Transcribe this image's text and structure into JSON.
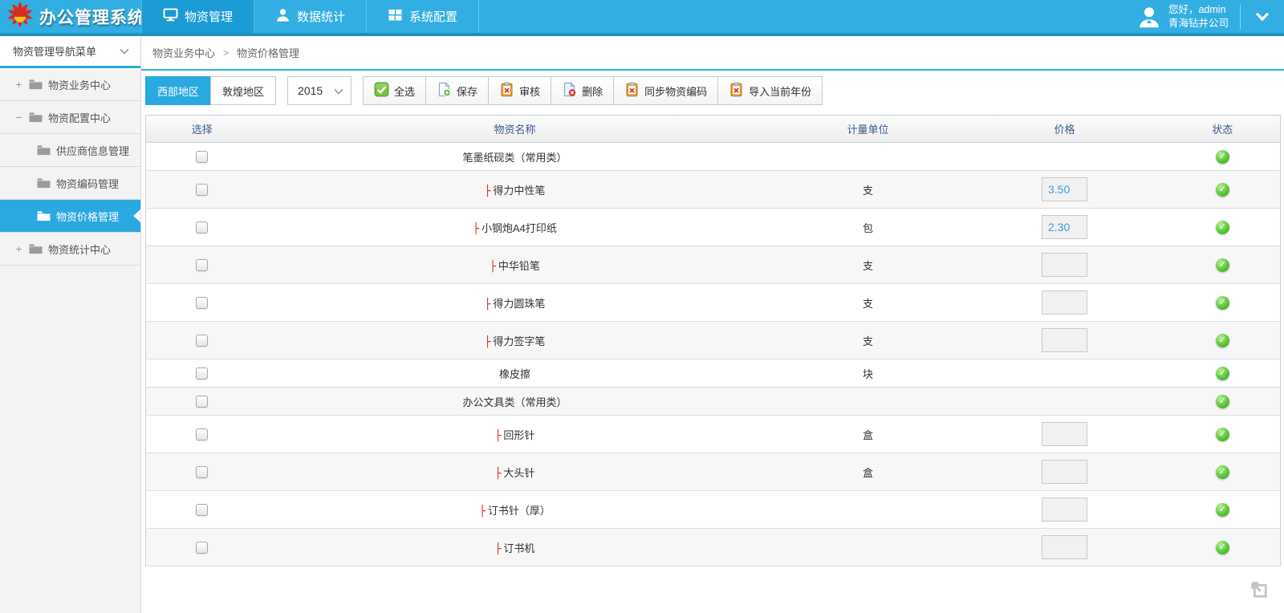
{
  "app": {
    "title": "办公管理系统"
  },
  "topnav": {
    "items": [
      {
        "label": "物资管理",
        "icon": "monitor-icon",
        "active": true
      },
      {
        "label": "数据统计",
        "icon": "user-icon",
        "active": false
      },
      {
        "label": "系统配置",
        "icon": "grid-icon",
        "active": false
      }
    ]
  },
  "user": {
    "greeting": "您好，admin",
    "company": "青海钻井公司"
  },
  "sidebar": {
    "title": "物资管理导航菜单",
    "items": [
      {
        "label": "物资业务中心",
        "level": 0,
        "expander": "+",
        "active": false
      },
      {
        "label": "物资配置中心",
        "level": 0,
        "expander": "−",
        "active": false
      },
      {
        "label": "供应商信息管理",
        "level": 1,
        "expander": "",
        "active": false
      },
      {
        "label": "物资编码管理",
        "level": 1,
        "expander": "",
        "active": false
      },
      {
        "label": "物资价格管理",
        "level": 1,
        "expander": "",
        "active": true
      },
      {
        "label": "物资统计中心",
        "level": 0,
        "expander": "+",
        "active": false
      }
    ]
  },
  "breadcrumb": {
    "parts": [
      "物资业务中心",
      "物资价格管理"
    ],
    "separator": ">"
  },
  "toolbar": {
    "region_tabs": [
      {
        "label": "西部地区",
        "active": true
      },
      {
        "label": "敦煌地区",
        "active": false
      }
    ],
    "year": "2015",
    "buttons": [
      {
        "label": "全选",
        "icon": "checkbox-checked-icon"
      },
      {
        "label": "保存",
        "icon": "save-doc-icon"
      },
      {
        "label": "审核",
        "icon": "clipboard-audit-icon"
      },
      {
        "label": "删除",
        "icon": "delete-doc-icon"
      },
      {
        "label": "同步物资编码",
        "icon": "clipboard-audit-icon"
      },
      {
        "label": "导入当前年份",
        "icon": "clipboard-audit-icon"
      }
    ]
  },
  "table": {
    "headers": [
      "选择",
      "物资名称",
      "计量单位",
      "价格",
      "状态"
    ],
    "rows": [
      {
        "name": "笔墨纸砚类（常用类）",
        "category": true,
        "branch": false,
        "unit": "",
        "input": false,
        "price": "",
        "status": "approved"
      },
      {
        "name": "得力中性笔",
        "category": false,
        "branch": true,
        "unit": "支",
        "input": true,
        "price": "3.50",
        "status": "approved"
      },
      {
        "name": "小钢炮A4打印纸",
        "category": false,
        "branch": true,
        "unit": "包",
        "input": true,
        "price": "2.30",
        "status": "approved"
      },
      {
        "name": "中华铅笔",
        "category": false,
        "branch": true,
        "unit": "支",
        "input": true,
        "price": "",
        "status": "approved"
      },
      {
        "name": "得力圆珠笔",
        "category": false,
        "branch": true,
        "unit": "支",
        "input": true,
        "price": "",
        "status": "approved"
      },
      {
        "name": "得力签字笔",
        "category": false,
        "branch": true,
        "unit": "支",
        "input": true,
        "price": "",
        "status": "approved"
      },
      {
        "name": "橡皮擦",
        "category": false,
        "branch": false,
        "unit": "块",
        "input": false,
        "price": "",
        "status": "approved"
      },
      {
        "name": "办公文具类（常用类）",
        "category": true,
        "branch": false,
        "unit": "",
        "input": false,
        "price": "",
        "status": "approved"
      },
      {
        "name": "回形针",
        "category": false,
        "branch": true,
        "unit": "盒",
        "input": true,
        "price": "",
        "status": "approved"
      },
      {
        "name": "大头针",
        "category": false,
        "branch": true,
        "unit": "盒",
        "input": true,
        "price": "",
        "status": "approved"
      },
      {
        "name": "订书针（厚）",
        "category": false,
        "branch": true,
        "unit": "",
        "input": true,
        "price": "",
        "status": "approved"
      },
      {
        "name": "订书机",
        "category": false,
        "branch": true,
        "unit": "",
        "input": true,
        "price": "",
        "status": "approved"
      }
    ],
    "branch_prefix": "├"
  },
  "colors": {
    "accent": "#2aa8e0",
    "topbar": "#32aee2",
    "topbar_active": "#1b9cd4",
    "status_green": "#55c135"
  }
}
